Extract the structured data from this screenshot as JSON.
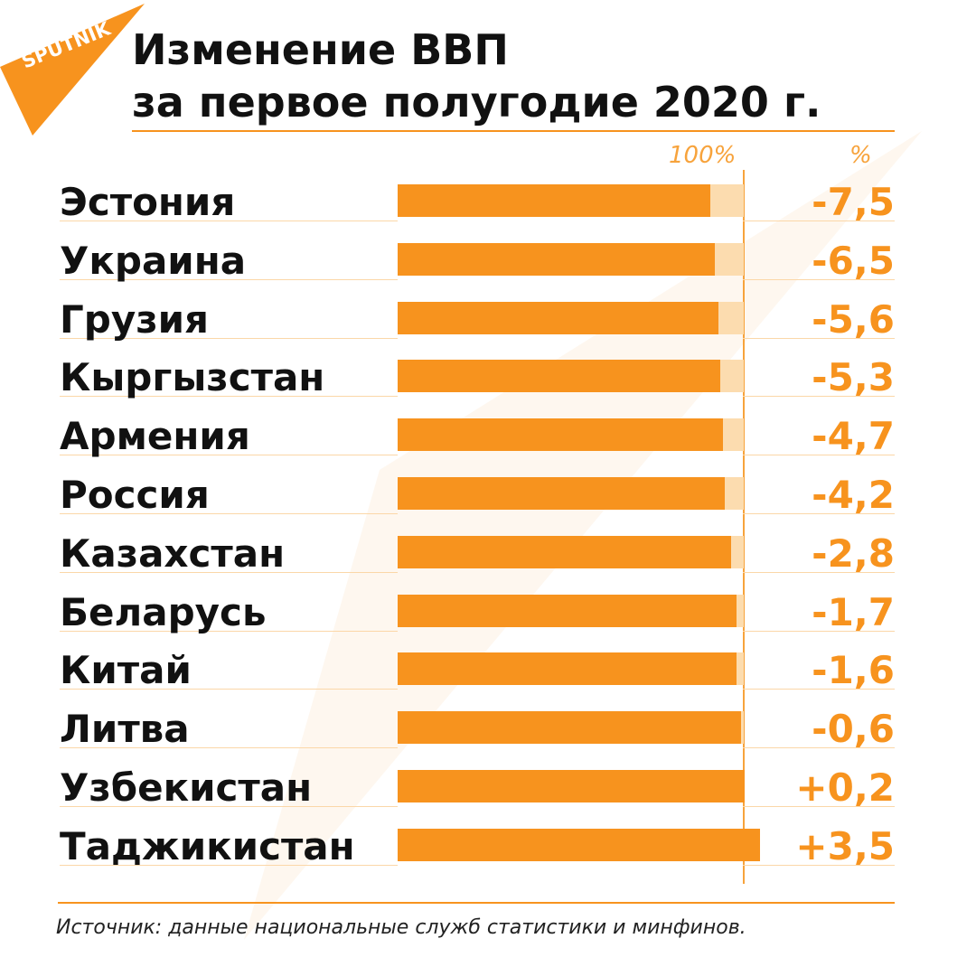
{
  "brand": {
    "logo_text": "SPUTNIK",
    "accent": "#f7931e",
    "track": "#fcdcaf"
  },
  "header": {
    "title_line1": "Изменение ВВП",
    "title_line2": "за первое полугодие 2020 г."
  },
  "chart_data": {
    "type": "bar",
    "orientation": "horizontal",
    "title": "Изменение ВВП за первое полугодие 2020 г.",
    "reference_label": "100%",
    "value_header": "%",
    "reference": 100,
    "categories": [
      "Эстония",
      "Украина",
      "Грузия",
      "Кыргызстан",
      "Армения",
      "Россия",
      "Казахстан",
      "Беларусь",
      "Китай",
      "Литва",
      "Узбекистан",
      "Таджикистан"
    ],
    "values": [
      -7.5,
      -6.5,
      -5.6,
      -5.3,
      -4.7,
      -4.2,
      -2.8,
      -1.7,
      -1.6,
      -0.6,
      0.2,
      3.5
    ],
    "value_labels": [
      "-7,5",
      "-6,5",
      "-5,6",
      "-5,3",
      "-4,7",
      "-4,2",
      "-2,8",
      "-1,7",
      "-1,6",
      "-0,6",
      "+0,2",
      "+3,5"
    ]
  },
  "footer": {
    "source": "Источник: данные национальные служб статистики и минфинов."
  }
}
